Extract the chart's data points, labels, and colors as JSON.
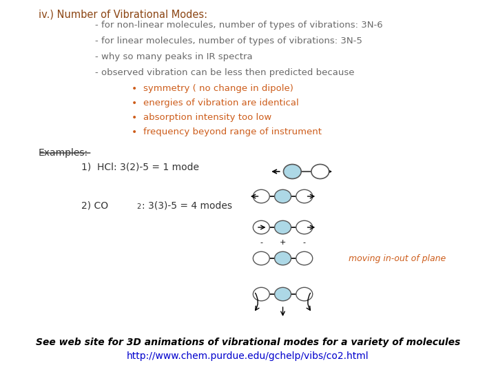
{
  "bg_color": "#ffffff",
  "title_color": "#8B4513",
  "body_color": "#696969",
  "bullet_color": "#CD5C1A",
  "example_color": "#333333",
  "link_color": "#0000CD",
  "title": "iv.) Number of Vibrational Modes:",
  "lines": [
    "- for non-linear molecules, number of types of vibrations: 3N-6",
    "- for linear molecules, number of types of vibrations: 3N-5",
    "- why so many peaks in IR spectra",
    "- observed vibration can be less then predicted because"
  ],
  "bullets": [
    "symmetry ( no change in dipole)",
    "energies of vibration are identical",
    "absorption intensity too low",
    "frequency beyond range of instrument"
  ],
  "examples_label": "Examples:",
  "example1": "1)  HCl: 3(2)-5 = 1 mode",
  "moving_label": "moving in-out of plane",
  "footer1": "See web site for 3D animations of vibrational modes for a variety of molecules",
  "footer2": "http://www.chem.purdue.edu/gchelp/vibs/co2.html",
  "atom_fill_light": "#add8e6",
  "atom_fill_white": "#ffffff",
  "atom_edge": "#555555"
}
